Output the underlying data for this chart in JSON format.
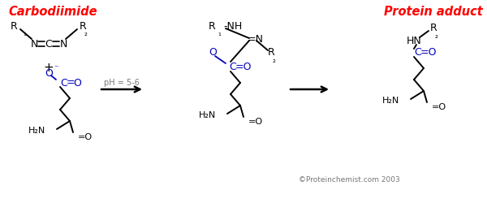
{
  "title": "Carbodiimide",
  "title_color": "#FF0000",
  "bg_color": "#FFFFFF",
  "protein_adduct_label": "Protein adduct",
  "protein_adduct_color": "#FF0000",
  "copyright": "©Proteinchemist.com 2003",
  "blue": "#0000BB",
  "black": "#000000",
  "gray": "#777777",
  "ph_label": "pH = 5-6"
}
